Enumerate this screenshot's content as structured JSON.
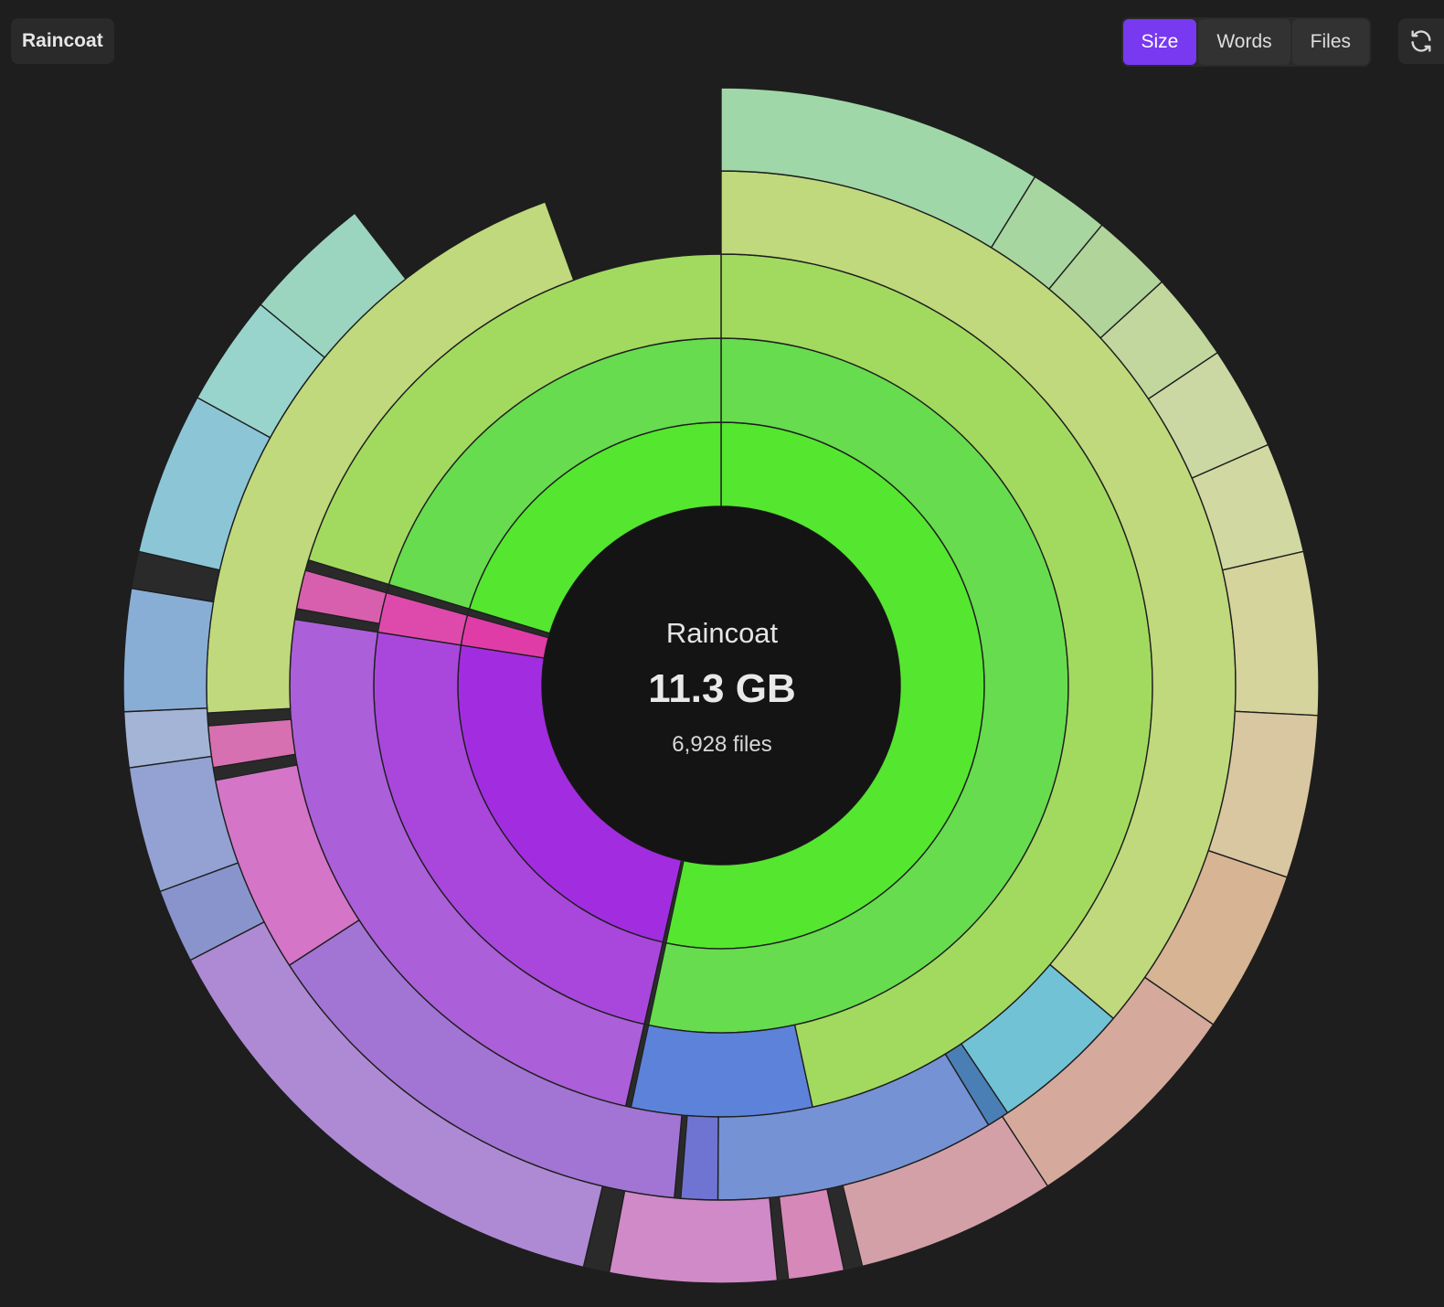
{
  "header": {
    "vault_name": "Raincoat",
    "metric_options": [
      "Size",
      "Words",
      "Files"
    ],
    "active_metric": "Size",
    "refresh_icon": "refresh-icon"
  },
  "center": {
    "name": "Raincoat",
    "total": "11.3 GB",
    "files": "6,928 files"
  },
  "colors": {
    "background": "#1e1e1e",
    "accent": "#7839f0",
    "center_fill": "#141414"
  },
  "chart_data": {
    "type": "sunburst",
    "metric": "Size",
    "rings": [
      {
        "level": 1,
        "segments": [
          {
            "share": 0.5335,
            "color": "#55e630"
          },
          {
            "share": 0.002,
            "color": "#2a2a2a"
          },
          {
            "share": 0.239,
            "color": "#a22de0"
          },
          {
            "share": 0.0185,
            "color": "#e03ca8"
          },
          {
            "share": 0.004,
            "color": "#2a2a2a"
          },
          {
            "share": 0.203,
            "color": "#55e630"
          }
        ]
      },
      {
        "level": 2,
        "segments": [
          {
            "share": 0.5335,
            "color": "#67dc4e"
          },
          {
            "share": 0.002,
            "color": "#2a2a2a"
          },
          {
            "share": 0.239,
            "color": "#a947dc"
          },
          {
            "share": 0.0185,
            "color": "#dd4aac"
          },
          {
            "share": 0.004,
            "color": "#2a2a2a"
          },
          {
            "share": 0.203,
            "color": "#67dc4e"
          }
        ]
      },
      {
        "level": 3,
        "segments": [
          {
            "share": 0.466,
            "color": "#a2da60"
          },
          {
            "share": 0.0675,
            "color": "#5d82da"
          },
          {
            "share": 0.002,
            "color": "#2a2a2a"
          },
          {
            "share": 0.239,
            "color": "#ab5fd9"
          },
          {
            "share": 0.004,
            "color": "#2a2a2a"
          },
          {
            "share": 0.0145,
            "color": "#d85fae"
          },
          {
            "share": 0.004,
            "color": "#2a2a2a"
          },
          {
            "share": 0.203,
            "color": "#a2da60"
          }
        ]
      },
      {
        "level": 4,
        "segments": [
          {
            "share": 0.362,
            "color": "#bfd97c"
          },
          {
            "share": 0.044,
            "color": "#72c2d6"
          },
          {
            "share": 0.007,
            "color": "#4a7fb5"
          },
          {
            "share": 0.088,
            "color": "#7592d4"
          },
          {
            "share": 0.0115,
            "color": "#6f74d2"
          },
          {
            "share": 0.002,
            "color": "#2a2a2a"
          },
          {
            "share": 0.144,
            "color": "#a275d4"
          },
          {
            "share": 0.062,
            "color": "#d475c8"
          },
          {
            "share": 0.004,
            "color": "#2a2a2a"
          },
          {
            "share": 0.013,
            "color": "#d670b0"
          },
          {
            "share": 0.004,
            "color": "#2a2a2a"
          },
          {
            "share": 0.203,
            "color": "#bfd97c"
          }
        ]
      },
      {
        "level": 5,
        "segments": [
          {
            "share": 0.088,
            "color": "#a0d7a8"
          },
          {
            "share": 0.022,
            "color": "#a8d6a0"
          },
          {
            "share": 0.022,
            "color": "#b0d49a"
          },
          {
            "share": 0.024,
            "color": "#c2d79e"
          },
          {
            "share": 0.028,
            "color": "#cbd8a4"
          },
          {
            "share": 0.03,
            "color": "#d2d8a2"
          },
          {
            "share": 0.044,
            "color": "#d4d49c"
          },
          {
            "share": 0.044,
            "color": "#d8c7a0"
          },
          {
            "share": 0.044,
            "color": "#d6b494"
          },
          {
            "share": 0.062,
            "color": "#d5aa9c"
          },
          {
            "share": 0.054,
            "color": "#d3a0a8"
          },
          {
            "share": 0.005,
            "color": "#2a2a2a"
          },
          {
            "share": 0.015,
            "color": "#d688b8"
          },
          {
            "share": 0.003,
            "color": "#2a2a2a"
          },
          {
            "share": 0.045,
            "color": "#d08ac8"
          },
          {
            "share": 0.007,
            "color": "#2a2a2a"
          },
          {
            "share": 0.137,
            "color": "#ae8ad4"
          },
          {
            "share": 0.02,
            "color": "#8a94cc"
          },
          {
            "share": 0.034,
            "color": "#93a2d2"
          },
          {
            "share": 0.015,
            "color": "#a3b4d6"
          },
          {
            "share": 0.033,
            "color": "#89aed6"
          },
          {
            "share": 0.01,
            "color": "#2a2a2a"
          },
          {
            "share": 0.044,
            "color": "#8cc6d6"
          },
          {
            "share": 0.03,
            "color": "#98d4cc"
          },
          {
            "share": 0.035,
            "color": "#9bd5bf"
          }
        ]
      }
    ]
  }
}
